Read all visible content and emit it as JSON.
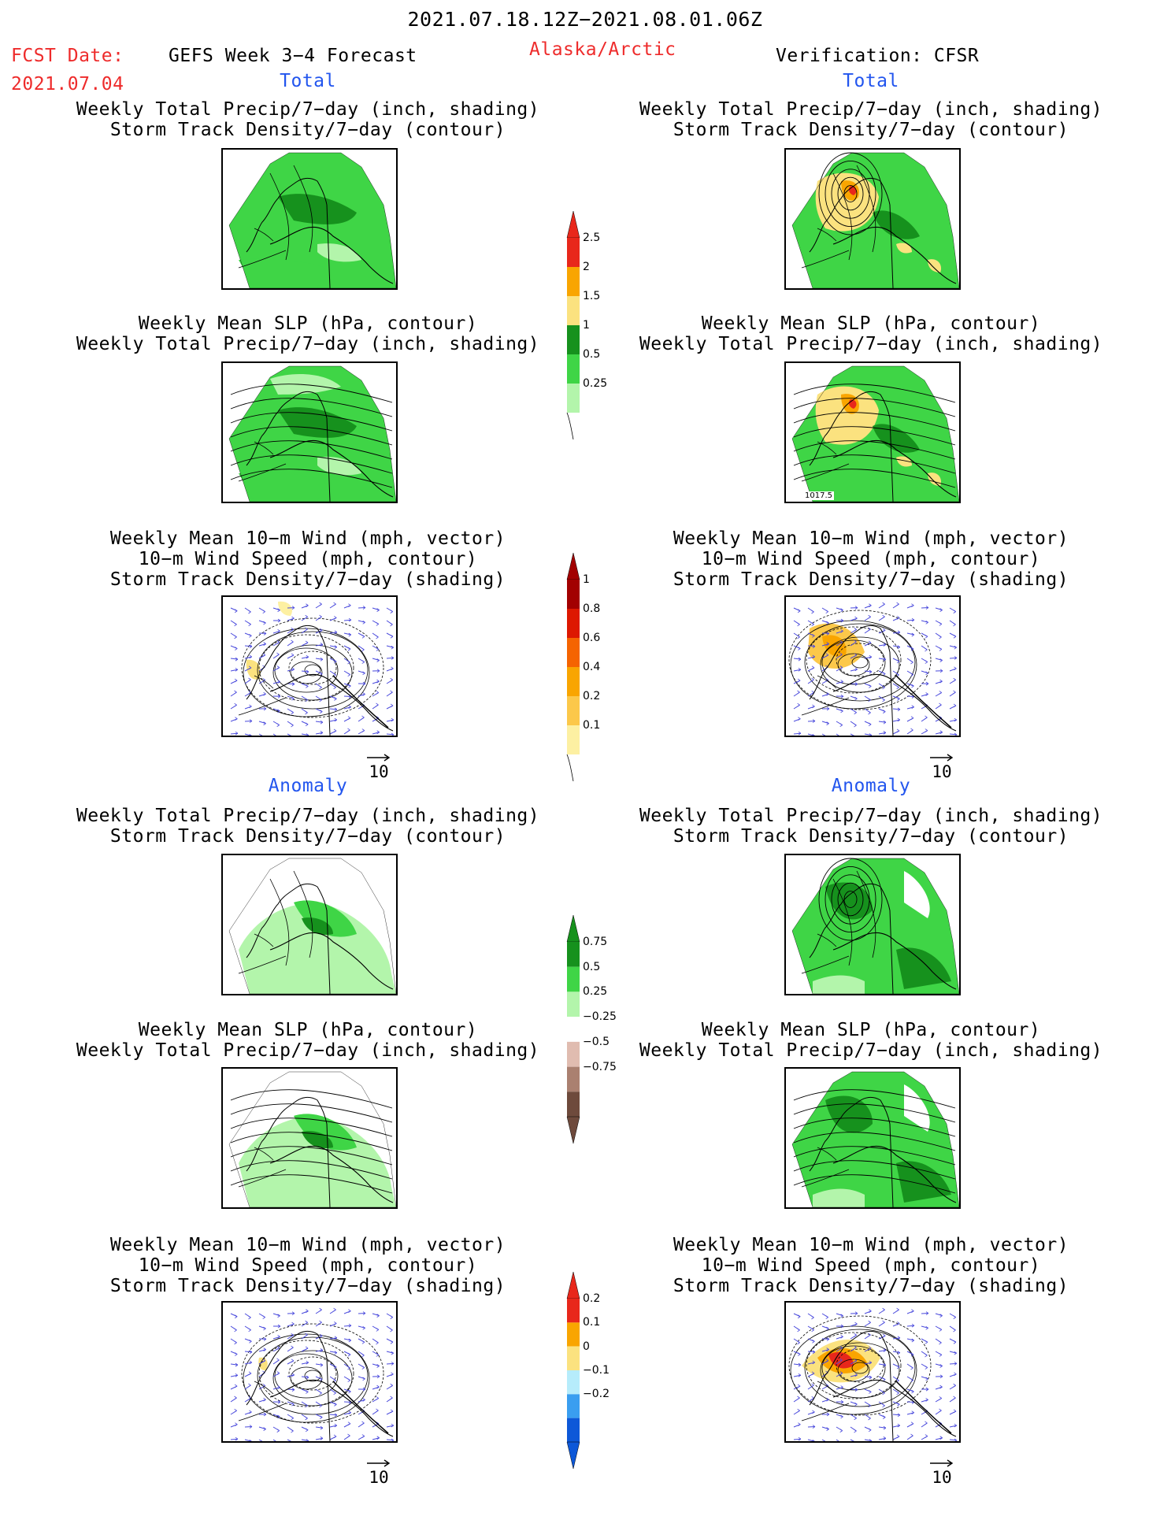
{
  "header": {
    "period": "2021.07.18.12Z−2021.08.01.06Z",
    "fcst_label": "FCST Date:",
    "fcst_date": "2021.07.04",
    "product": "GEFS Week 3−4 Forecast",
    "region": "Alaska/Arctic",
    "verification": "Verification: CFSR"
  },
  "sections": {
    "total": "Total",
    "anomaly": "Anomaly"
  },
  "panel_titles": {
    "precip_track": [
      "Weekly Total Precip/7−day (inch, shading)",
      "Storm Track Density/7−day (contour)"
    ],
    "slp_precip": [
      "Weekly Mean SLP (hPa, contour)",
      "Weekly Total Precip/7−day (inch, shading)"
    ],
    "wind_track": [
      "Weekly Mean 10−m Wind (mph, vector)",
      "10−m Wind Speed (mph, contour)",
      "Storm Track Density/7−day (shading)"
    ]
  },
  "vector_ref": "10",
  "map_annotation": "1017.5",
  "colorbars": {
    "precip_total": {
      "labels": [
        "2.5",
        "2",
        "1.5",
        "1",
        "0.5",
        "0.25"
      ],
      "colors": [
        "#e8271b",
        "#f9a500",
        "#fbe27f",
        "#16911d",
        "#3fd546",
        "#b3f5ab"
      ]
    },
    "track_total": {
      "labels": [
        "1",
        "0.8",
        "0.6",
        "0.4",
        "0.2",
        "0.1"
      ],
      "colors": [
        "#a20000",
        "#dd1800",
        "#f56400",
        "#f9a500",
        "#fcc84a",
        "#fdf0a2"
      ]
    },
    "precip_anom": {
      "labels": [
        "0.75",
        "0.5",
        "0.25",
        "−0.25",
        "−0.5",
        "−0.75"
      ],
      "colors": [
        "#16911d",
        "#3fd546",
        "#b3f5ab",
        "#ffffff",
        "#e0bcb0",
        "#aa8070",
        "#6e4a3c"
      ]
    },
    "track_anom": {
      "labels": [
        "0.2",
        "0.1",
        "0",
        "−0.1",
        "−0.2"
      ],
      "colors": [
        "#e8271b",
        "#f9a500",
        "#fbe27f",
        "#b6ecfb",
        "#3a9ef0",
        "#0d58d8"
      ]
    }
  }
}
